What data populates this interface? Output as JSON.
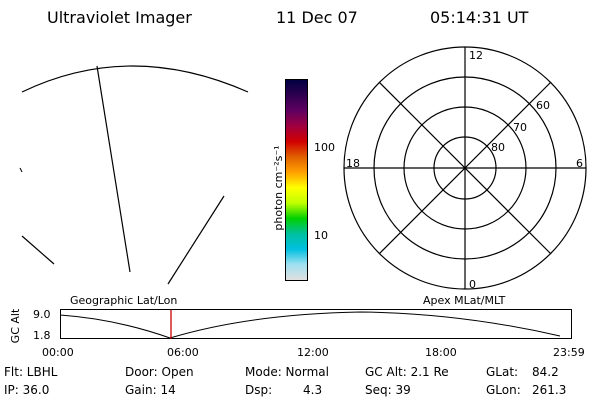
{
  "header": {
    "title": "Ultraviolet Imager",
    "date": "11 Dec 07",
    "time": "05:14:31 UT"
  },
  "colorbar": {
    "unit_label": "photon cm⁻²s⁻¹",
    "ticks": [
      "100",
      "10"
    ],
    "stops": [
      "#000040",
      "#300050",
      "#600060",
      "#a00040",
      "#d00000",
      "#e06000",
      "#ffa000",
      "#ffff00",
      "#c0ff00",
      "#00d000",
      "#00c0a0",
      "#00c0e0",
      "#a0e0f0",
      "#e0e0e0"
    ]
  },
  "polar_plot": {
    "lat_labels": [
      "60",
      "70",
      "80"
    ],
    "mlt_labels": {
      "top": "12",
      "left": "18",
      "right": "6",
      "bottom": "0"
    }
  },
  "timeline": {
    "left_label": "Geographic Lat/Lon",
    "right_label": "Apex MLat/MLT",
    "axis_title": "GC Alt",
    "y_ticks": [
      "9.0",
      "1.8"
    ],
    "x_ticks": [
      "00:00",
      "06:00",
      "12:00",
      "18:00",
      "23:59"
    ],
    "cursor_time": "05:14"
  },
  "status": {
    "flt": "Flt: LBHL",
    "ip": "IP: 36.0",
    "door": "Door: Open",
    "gain": "Gain: 14",
    "mode": "Mode: Normal",
    "dsp_label": "Dsp:",
    "dsp_value": "4.3",
    "gc_alt": "GC Alt: 2.1 Re",
    "seq": "Seq: 39",
    "glat_label": "GLat:",
    "glat_value": "84.2",
    "glon_label": "GLon:",
    "glon_value": "261.3"
  }
}
